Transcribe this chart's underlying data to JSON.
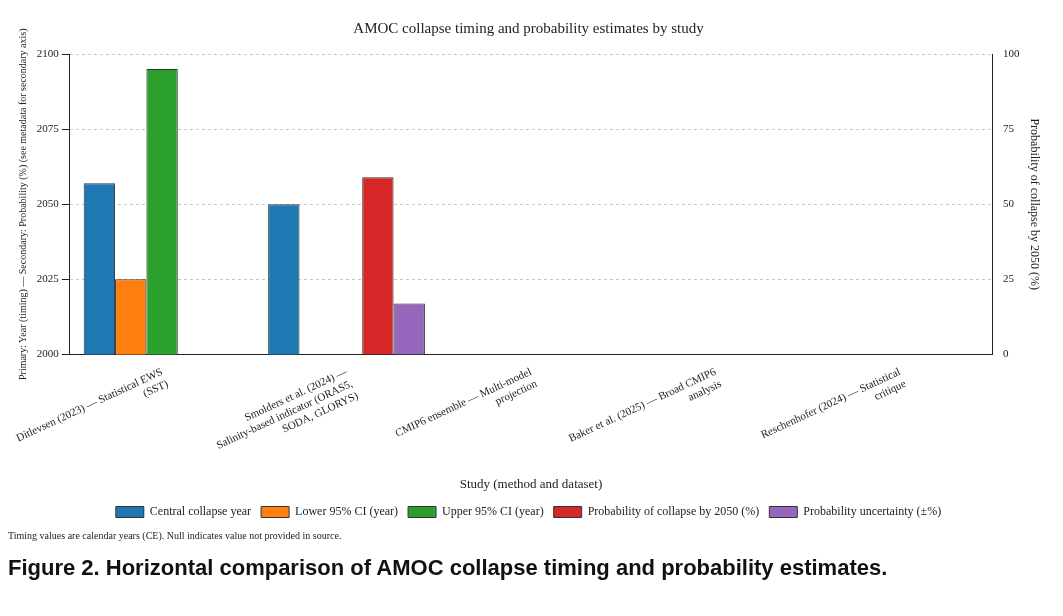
{
  "chart_data": {
    "type": "bar",
    "title": "AMOC collapse timing and probability estimates by study",
    "xlabel": "Study (method and dataset)",
    "ylabel": "Primary: Year (timing) — Secondary: Probability (%) (see metadata for secondary axis)",
    "y2label": "Probability of collapse by 2050 (%)",
    "categories": [
      "Ditlevsen (2023) — Statistical EWS (SST)",
      "Smolders et al. (2024) — Salinity-based indicator (ORAS5, SODA, GLORYS)",
      "CMIP6 ensemble — Multi-model projection",
      "Baker et al. (2025) — Broad CMIP6 analysis",
      "Reschenhofer (2024) — Statistical critique"
    ],
    "series": [
      {
        "name": "Central collapse year",
        "color": "#1f77b4",
        "values": [
          2057,
          2050,
          null,
          null,
          null
        ]
      },
      {
        "name": "Lower 95% CI (year)",
        "color": "#ff7f0e",
        "values": [
          2025,
          null,
          null,
          null,
          null
        ]
      },
      {
        "name": "Upper 95% CI (year)",
        "color": "#2ca02c",
        "values": [
          2095,
          null,
          null,
          null,
          null
        ]
      },
      {
        "name": "Probability of collapse by 2050 (%)",
        "color": "#d62728",
        "axis": "y2",
        "values": [
          null,
          59,
          null,
          null,
          null
        ]
      },
      {
        "name": "Probability uncertainty (±%)",
        "color": "#9467bd",
        "axis": "y2",
        "values": [
          null,
          17,
          null,
          null,
          null
        ]
      }
    ],
    "ylim": [
      2000,
      2100
    ],
    "yticks": [
      2000,
      2025,
      2050,
      2075,
      2100
    ],
    "y2lim": [
      0,
      100
    ],
    "y2ticks": [
      0,
      25,
      50,
      75,
      100
    ],
    "grid": "y",
    "legend": "bottom",
    "annotations": [
      "Timing values are calendar years (CE). Null indicates value not provided in source.",
      "Figure 2. Horizontal comparison of AMOC collapse timing and probability estimates."
    ]
  }
}
